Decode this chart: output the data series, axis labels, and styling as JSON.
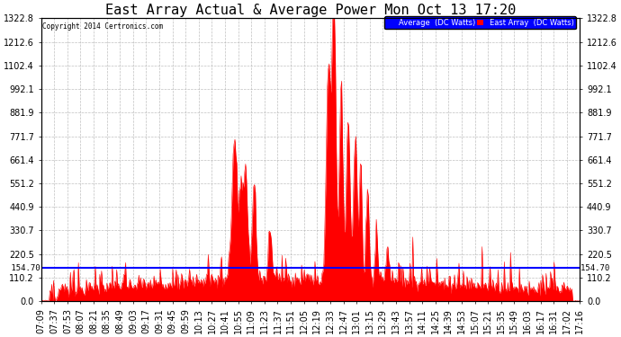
{
  "title": "East Array Actual & Average Power Mon Oct 13 17:20",
  "copyright": "Copyright 2014 Certronics.com",
  "legend_avg": "Average  (DC Watts)",
  "legend_east": "East Array  (DC Watts)",
  "avg_value": 154.7,
  "ymin": 0.0,
  "ymax": 1322.8,
  "yticks": [
    0.0,
    110.2,
    220.5,
    330.7,
    440.9,
    551.2,
    661.4,
    771.7,
    881.9,
    992.1,
    1102.4,
    1212.6,
    1322.8
  ],
  "background_color": "#ffffff",
  "plot_bg_color": "#ffffff",
  "grid_color": "#b0b0b0",
  "avg_line_color": "#0000ff",
  "fill_color": "#ff0000",
  "title_fontsize": 11,
  "tick_fontsize": 7,
  "x_tick_labels": [
    "07:09",
    "07:37",
    "07:53",
    "08:07",
    "08:21",
    "08:35",
    "08:49",
    "09:03",
    "09:17",
    "09:31",
    "09:45",
    "09:59",
    "10:13",
    "10:27",
    "10:41",
    "10:55",
    "11:09",
    "11:23",
    "11:37",
    "11:51",
    "12:05",
    "12:19",
    "12:33",
    "12:47",
    "13:01",
    "13:15",
    "13:29",
    "13:43",
    "13:57",
    "14:11",
    "14:25",
    "14:39",
    "14:53",
    "15:07",
    "15:21",
    "15:35",
    "15:49",
    "16:03",
    "16:17",
    "16:31",
    "17:02",
    "17:16"
  ]
}
